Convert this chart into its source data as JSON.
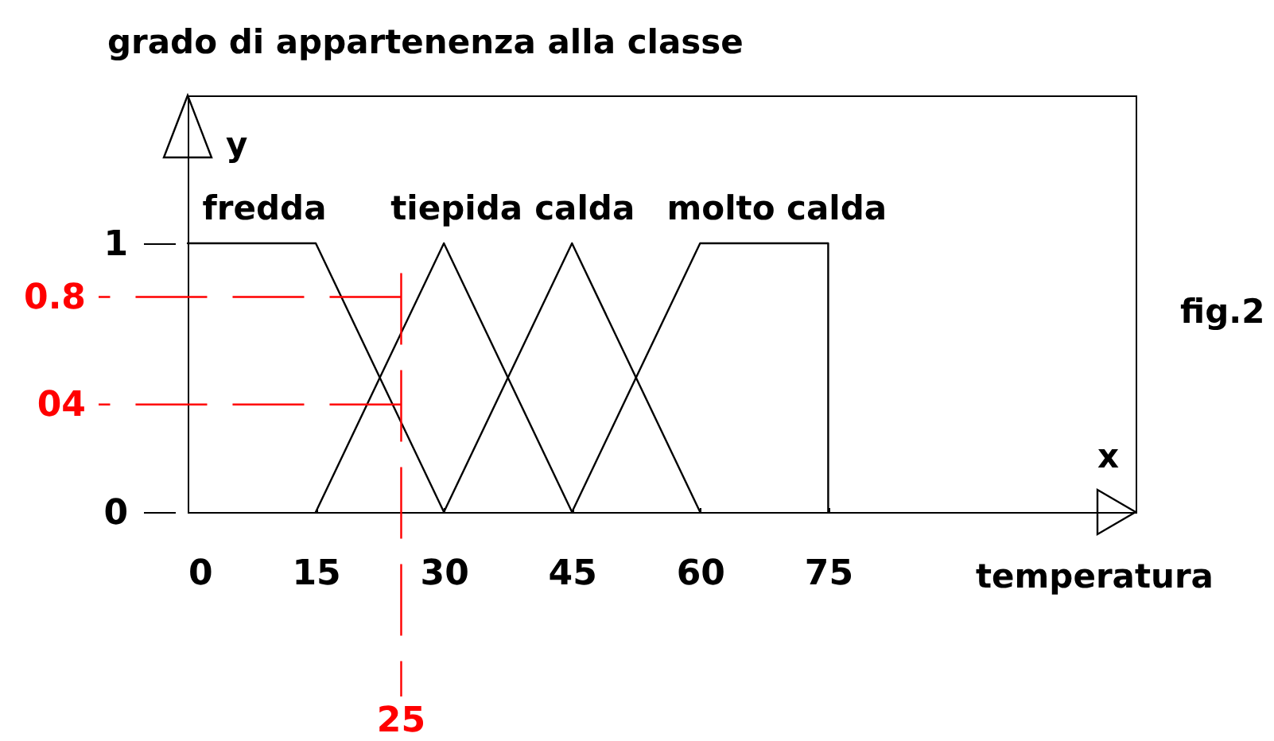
{
  "chart_data": {
    "type": "line",
    "xlabel": "temperatura",
    "ylabel": "grado di appartenenza alla classe",
    "series": [
      {
        "name": "fredda",
        "color": "#000000",
        "x": [
          0,
          15,
          30
        ],
        "values": [
          1,
          1,
          0
        ]
      },
      {
        "name": "tiepida",
        "color": "#000000",
        "x": [
          15,
          30,
          45
        ],
        "values": [
          0,
          1,
          0
        ]
      },
      {
        "name": "calda",
        "color": "#000000",
        "x": [
          30,
          45,
          60
        ],
        "values": [
          0,
          1,
          0
        ]
      },
      {
        "name": "molto calda",
        "color": "#000000",
        "x": [
          45,
          60,
          75,
          75
        ],
        "values": [
          0,
          1,
          1,
          0
        ]
      }
    ],
    "xlim": [
      0,
      111
    ],
    "xticks": [
      0,
      15,
      30,
      45,
      60,
      75
    ],
    "ylim": [
      0,
      1.55
    ],
    "yticks": [
      0,
      1
    ],
    "ref_lines": [
      {
        "axis": "y",
        "value": 0.8,
        "label": "0.8",
        "color": "#ff0000",
        "line_style": "dashed"
      },
      {
        "axis": "y",
        "value": 0.4,
        "color": "#ff0000",
        "line_style": "dashed"
      },
      {
        "axis": "x",
        "value": 25,
        "label": "25",
        "color": "#ff0000",
        "line_style": "dashed"
      }
    ],
    "annotations": [
      "y",
      "x",
      "fig.2",
      "04"
    ]
  }
}
